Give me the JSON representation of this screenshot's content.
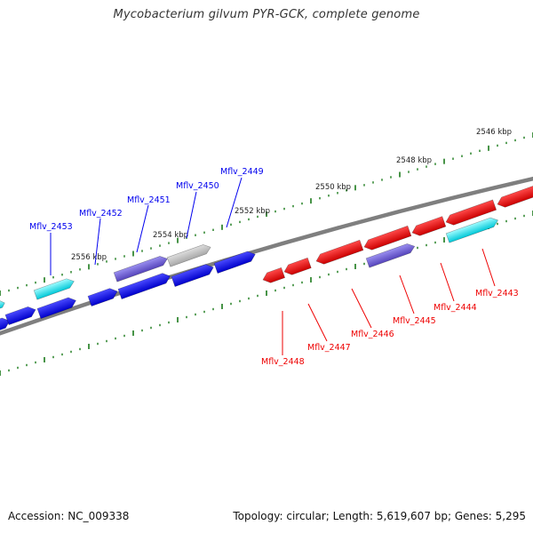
{
  "title": "Mycobacterium gilvum PYR-GCK, complete genome",
  "accession": "Accession: NC_009338",
  "summary": "Topology: circular; Length: 5,619,607 bp; Genes: 5,295",
  "colors": {
    "plus_strand_gene": "#0000ee",
    "minus_strand_gene": "#ee0000",
    "backbone": "#7f7f7f",
    "ticks": "#1a7a1a",
    "feature_rna": "#00e0e0",
    "feature_slate": "#6655cc",
    "feature_grey": "#b4b4b4"
  },
  "scale_labels": [
    "2546 kbp",
    "2548 kbp",
    "2550 kbp",
    "2552 kbp",
    "2554 kbp",
    "2556 kbp"
  ],
  "top_labels": [
    "Mflv_2453",
    "Mflv_2452",
    "Mflv_2451",
    "Mflv_2450",
    "Mflv_2449"
  ],
  "bottom_labels": [
    "Mflv_2448",
    "Mflv_2447",
    "Mflv_2446",
    "Mflv_2445",
    "Mflv_2444",
    "Mflv_2443"
  ]
}
